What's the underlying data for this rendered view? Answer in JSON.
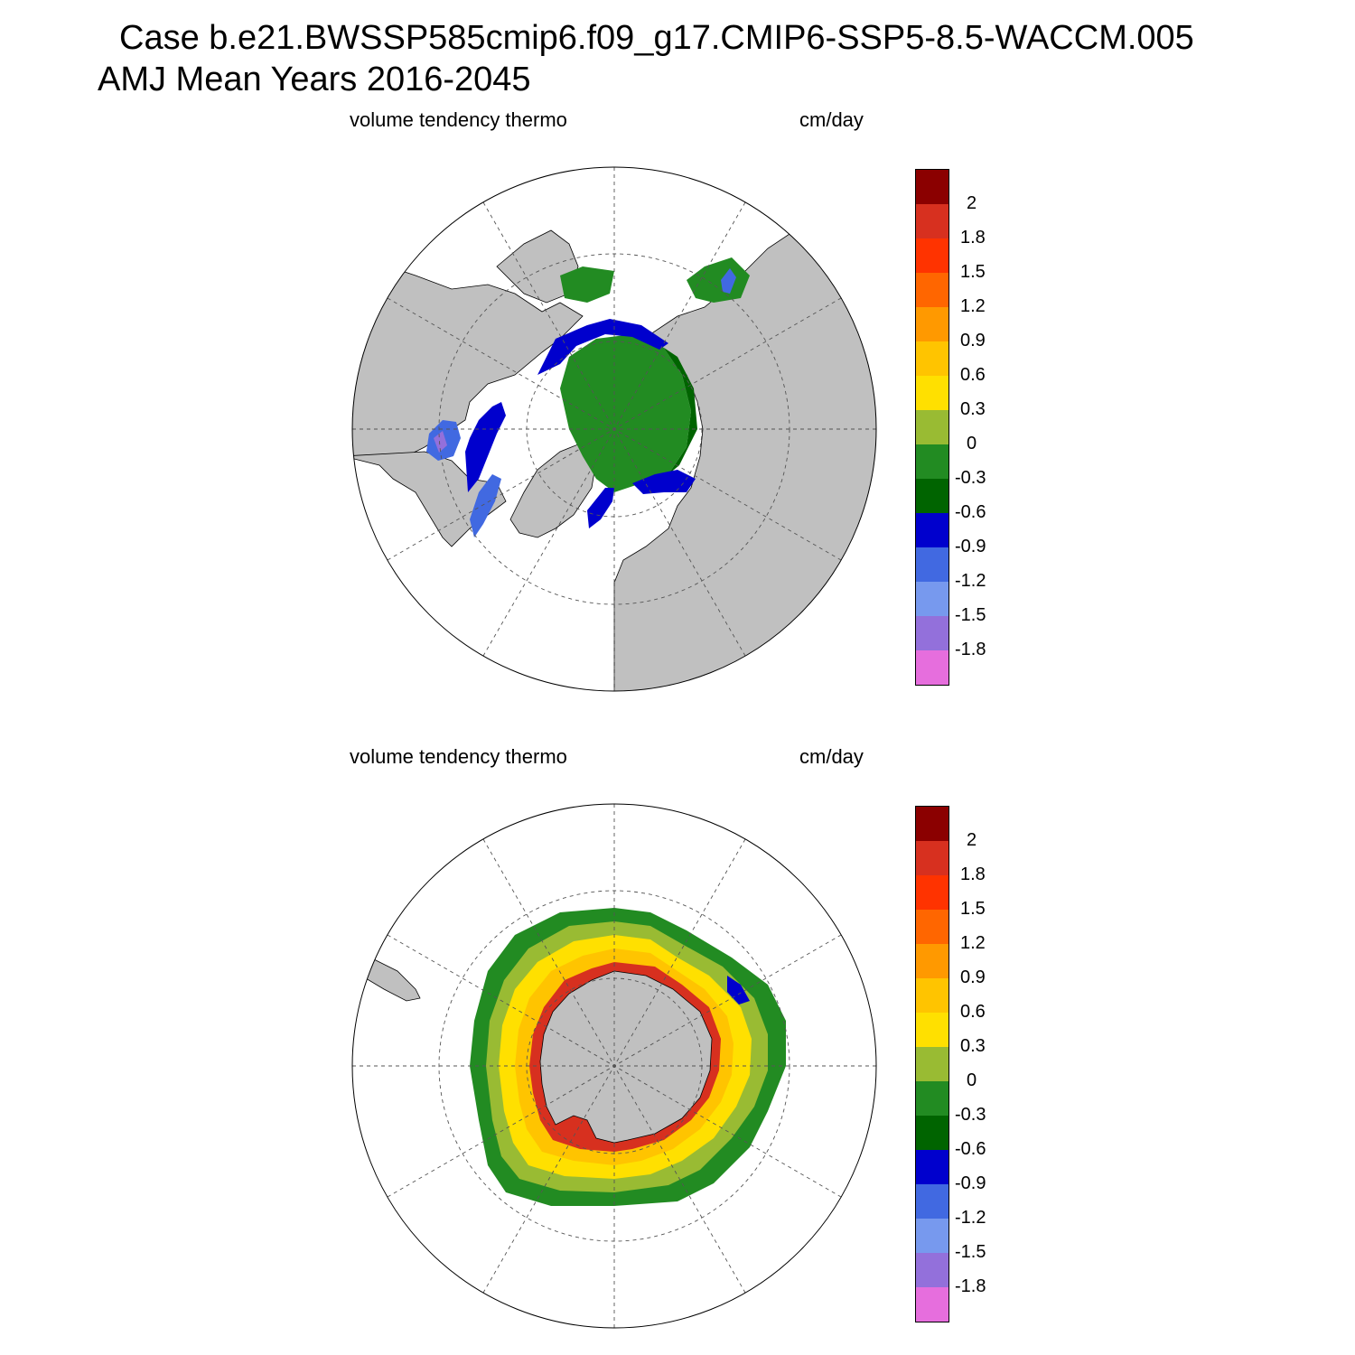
{
  "title": {
    "line1": "Case b.e21.BWSSP585cmip6.f09_g17.CMIP6-SSP5-8.5-WACCM.005",
    "line2": "AMJ Mean   Years 2016-2045"
  },
  "panels": [
    {
      "id": "north",
      "left_label": "volume tendency thermo",
      "right_label": "cm/day"
    },
    {
      "id": "south",
      "left_label": "volume tendency thermo",
      "right_label": "cm/day"
    }
  ],
  "colorbar": {
    "labels": [
      "2",
      "1.8",
      "1.5",
      "1.2",
      "0.9",
      "0.6",
      "0.3",
      "0",
      "-0.3",
      "-0.6",
      "-0.9",
      "-1.2",
      "-1.5",
      "-1.8"
    ],
    "colors": [
      "#8b0000",
      "#d7301f",
      "#ff3300",
      "#ff6600",
      "#ff9900",
      "#ffc400",
      "#ffe000",
      "#99bb33",
      "#228b22",
      "#006400",
      "#0000cd",
      "#4169e1",
      "#7799ee",
      "#9370db",
      "#e66edd"
    ]
  },
  "colors": {
    "land": "#c0c0c0",
    "ocean": "#ffffff",
    "grid": "#555555"
  }
}
